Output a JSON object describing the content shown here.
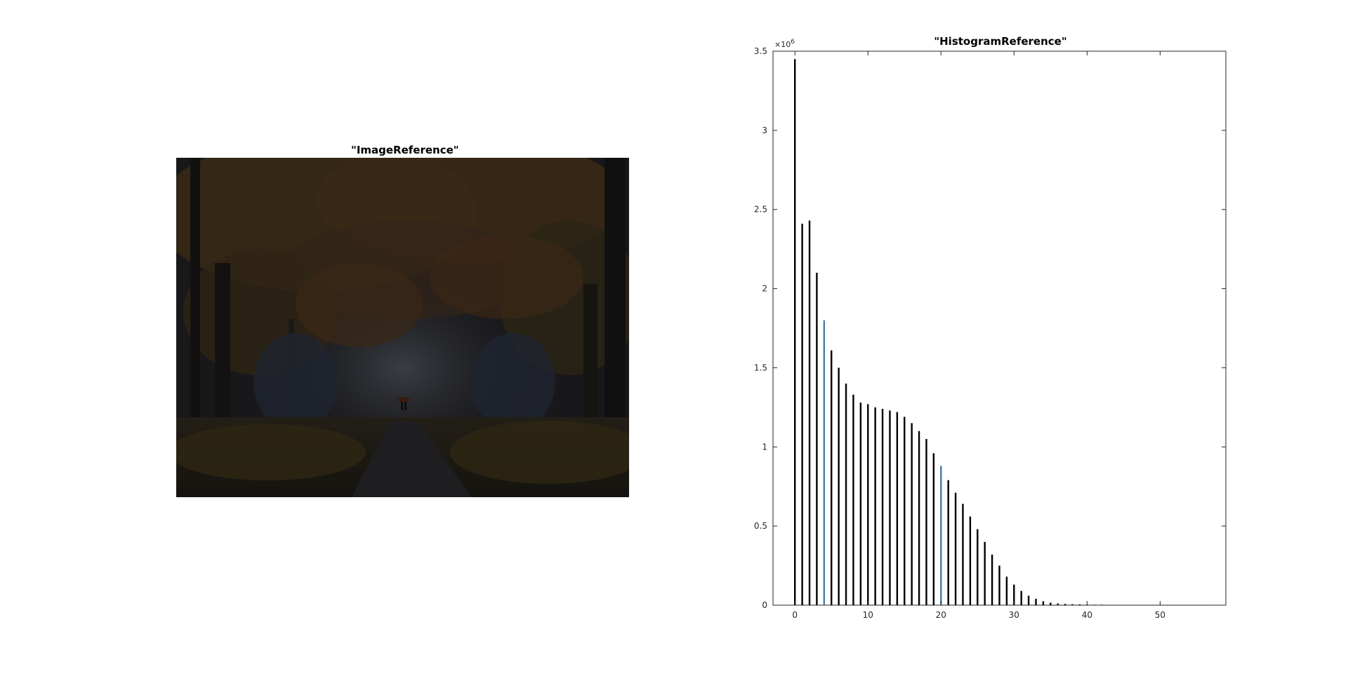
{
  "image_panel": {
    "title": "\"ImageReference\"",
    "description_icon": "painting-image"
  },
  "chart_data": {
    "type": "bar",
    "title": "\"HistogramReference\"",
    "xlabel": "",
    "ylabel": "",
    "exponent_label": "×10",
    "exponent_power": "6",
    "xlim": [
      -3,
      59
    ],
    "ylim": [
      0,
      3.5
    ],
    "xticks": [
      0,
      10,
      20,
      30,
      40,
      50
    ],
    "yticks": [
      0,
      0.5,
      1,
      1.5,
      2,
      2.5,
      3,
      3.5
    ],
    "ytick_labels": [
      "0",
      "0.5",
      "1",
      "1.5",
      "2",
      "2.5",
      "3",
      "3.5"
    ],
    "grid": false,
    "bar_color": "#000000",
    "highlight_color": "#4a7aa8",
    "highlighted_bins": [
      4,
      20
    ],
    "x": [
      0,
      1,
      2,
      3,
      4,
      5,
      6,
      7,
      8,
      9,
      10,
      11,
      12,
      13,
      14,
      15,
      16,
      17,
      18,
      19,
      20,
      21,
      22,
      23,
      24,
      25,
      26,
      27,
      28,
      29,
      30,
      31,
      32,
      33,
      34,
      35,
      36,
      37,
      38,
      39,
      40,
      41,
      42,
      43,
      44,
      45,
      46,
      47,
      48,
      49,
      50,
      51,
      52,
      53,
      54,
      55,
      56
    ],
    "values": [
      3.45,
      2.41,
      2.43,
      2.1,
      1.8,
      1.61,
      1.5,
      1.4,
      1.33,
      1.28,
      1.27,
      1.25,
      1.24,
      1.23,
      1.22,
      1.19,
      1.15,
      1.1,
      1.05,
      0.96,
      0.88,
      0.79,
      0.71,
      0.64,
      0.56,
      0.48,
      0.4,
      0.32,
      0.25,
      0.18,
      0.13,
      0.09,
      0.06,
      0.04,
      0.025,
      0.016,
      0.011,
      0.008,
      0.006,
      0.005,
      0.004,
      0.003,
      0.003,
      0.002,
      0.002,
      0.002,
      0.002,
      0.002,
      0.001,
      0.001,
      0.001,
      0.001,
      0.001,
      0.001,
      0.001,
      0.001,
      0.001
    ]
  }
}
